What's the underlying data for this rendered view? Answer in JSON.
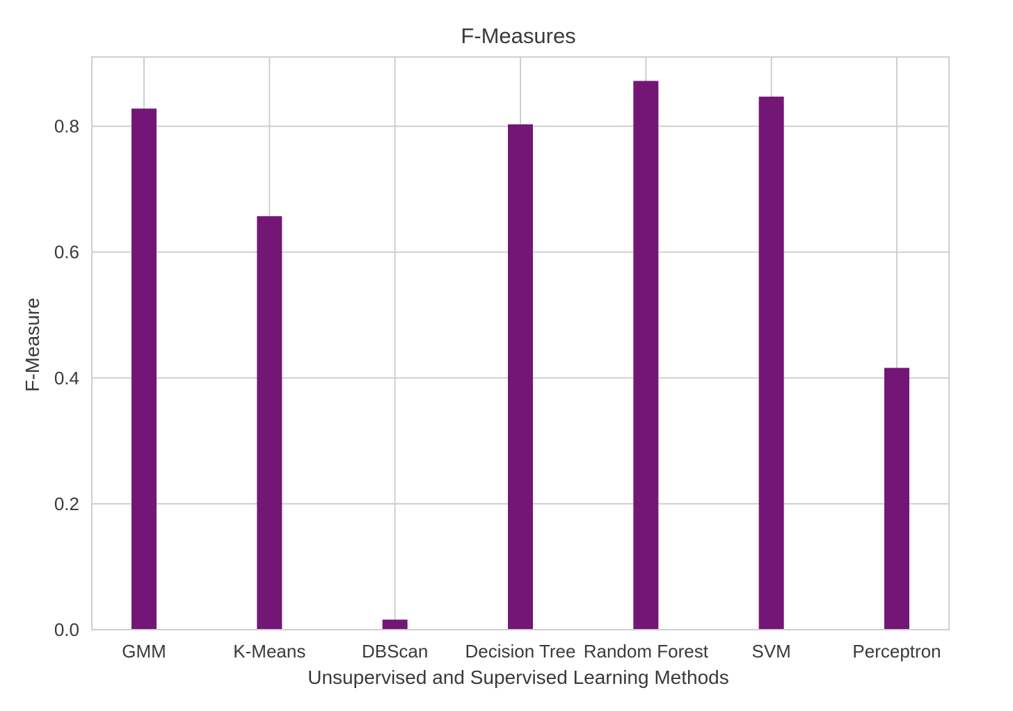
{
  "chart_data": {
    "type": "bar",
    "title": "F-Measures",
    "xlabel": "Unsupervised and Supervised Learning Methods",
    "ylabel": "F-Measure",
    "categories": [
      "GMM",
      "K-Means",
      "DBScan",
      "Decision Tree",
      "Random Forest",
      "SVM",
      "Perceptron"
    ],
    "values": [
      0.828,
      0.657,
      0.016,
      0.803,
      0.872,
      0.847,
      0.416
    ],
    "ylim": [
      0,
      0.91
    ],
    "yticks": [
      "0.0",
      "0.2",
      "0.4",
      "0.6",
      "0.8"
    ],
    "grid": true,
    "bar_color": "#741675",
    "grid_color": "#cfcfcf",
    "background_color": "#ffffff"
  }
}
